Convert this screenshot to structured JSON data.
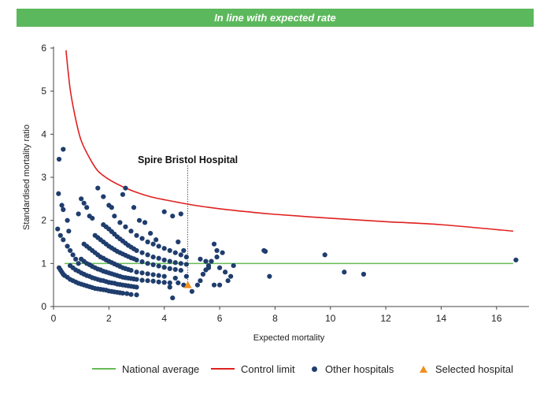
{
  "banner": {
    "text": "In line with expected rate",
    "color": "#5cb85c"
  },
  "colors": {
    "national_average": "#66bb55",
    "control_limit": "#e02020",
    "other_hospitals": "#1f3d6d",
    "selected_hospital": "#f0901e"
  },
  "chart_data": {
    "type": "scatter",
    "title": "In line with expected rate",
    "xlabel": "Expected mortality",
    "ylabel": "Standardised mortality ratio",
    "xlim": [
      0,
      17
    ],
    "ylim": [
      0,
      6
    ],
    "x_ticks": [
      0,
      2,
      4,
      6,
      8,
      10,
      12,
      14,
      16
    ],
    "y_ticks": [
      0,
      1,
      2,
      3,
      4,
      5,
      6
    ],
    "annotation": {
      "text": "Spire Bristol Hospital",
      "x": 4.85,
      "y": 0.5
    },
    "national_average": {
      "name": "National average",
      "y": 1.0,
      "x_range": [
        0.4,
        16.6
      ]
    },
    "control_limit": {
      "name": "Control limit",
      "x": [
        0.45,
        0.6,
        0.8,
        1.0,
        1.3,
        1.6,
        2.0,
        2.5,
        3.0,
        3.5,
        4.0,
        5.0,
        6.0,
        7.0,
        8.0,
        10.0,
        12.0,
        14.0,
        16.6
      ],
      "y": [
        5.95,
        5.05,
        4.35,
        3.85,
        3.45,
        3.15,
        2.95,
        2.78,
        2.65,
        2.55,
        2.48,
        2.36,
        2.27,
        2.2,
        2.14,
        2.05,
        1.97,
        1.9,
        1.75
      ]
    },
    "series": [
      {
        "name": "Other hospitals",
        "points": [
          [
            0.15,
            1.8
          ],
          [
            0.2,
            3.42
          ],
          [
            0.35,
            3.65
          ],
          [
            0.18,
            2.62
          ],
          [
            0.3,
            2.35
          ],
          [
            0.35,
            2.25
          ],
          [
            0.5,
            2.0
          ],
          [
            0.55,
            1.75
          ],
          [
            0.25,
            1.65
          ],
          [
            0.35,
            1.55
          ],
          [
            0.5,
            1.4
          ],
          [
            0.6,
            1.3
          ],
          [
            0.7,
            1.2
          ],
          [
            0.8,
            1.1
          ],
          [
            0.9,
            1.0
          ],
          [
            0.2,
            0.9
          ],
          [
            0.25,
            0.85
          ],
          [
            0.3,
            0.8
          ],
          [
            0.35,
            0.75
          ],
          [
            0.4,
            0.72
          ],
          [
            0.5,
            0.68
          ],
          [
            0.6,
            0.63
          ],
          [
            0.7,
            0.6
          ],
          [
            0.8,
            0.57
          ],
          [
            0.9,
            0.54
          ],
          [
            1.0,
            0.52
          ],
          [
            1.1,
            0.5
          ],
          [
            1.2,
            0.48
          ],
          [
            1.3,
            0.46
          ],
          [
            1.4,
            0.44
          ],
          [
            1.5,
            0.42
          ],
          [
            1.6,
            0.41
          ],
          [
            1.7,
            0.4
          ],
          [
            1.8,
            0.39
          ],
          [
            1.9,
            0.38
          ],
          [
            2.0,
            0.36
          ],
          [
            2.1,
            0.35
          ],
          [
            2.2,
            0.34
          ],
          [
            2.3,
            0.33
          ],
          [
            2.4,
            0.32
          ],
          [
            2.5,
            0.31
          ],
          [
            2.65,
            0.3
          ],
          [
            2.8,
            0.28
          ],
          [
            3.0,
            0.27
          ],
          [
            0.6,
            0.95
          ],
          [
            0.7,
            0.9
          ],
          [
            0.8,
            0.85
          ],
          [
            0.9,
            0.82
          ],
          [
            1.0,
            0.78
          ],
          [
            1.1,
            0.75
          ],
          [
            1.2,
            0.72
          ],
          [
            1.3,
            0.7
          ],
          [
            1.4,
            0.67
          ],
          [
            1.5,
            0.65
          ],
          [
            1.6,
            0.63
          ],
          [
            1.7,
            0.61
          ],
          [
            1.8,
            0.6
          ],
          [
            1.9,
            0.58
          ],
          [
            2.0,
            0.56
          ],
          [
            2.1,
            0.55
          ],
          [
            2.2,
            0.54
          ],
          [
            2.3,
            0.52
          ],
          [
            2.4,
            0.51
          ],
          [
            2.5,
            0.5
          ],
          [
            2.6,
            0.49
          ],
          [
            2.7,
            0.48
          ],
          [
            2.8,
            0.47
          ],
          [
            2.9,
            0.46
          ],
          [
            3.0,
            0.45
          ],
          [
            1.0,
            1.1
          ],
          [
            1.1,
            1.05
          ],
          [
            1.2,
            1.0
          ],
          [
            1.3,
            0.97
          ],
          [
            1.4,
            0.93
          ],
          [
            1.5,
            0.9
          ],
          [
            1.6,
            0.87
          ],
          [
            1.7,
            0.85
          ],
          [
            1.8,
            0.82
          ],
          [
            1.9,
            0.8
          ],
          [
            2.0,
            0.78
          ],
          [
            2.1,
            0.76
          ],
          [
            2.2,
            0.74
          ],
          [
            2.3,
            0.72
          ],
          [
            2.4,
            0.7
          ],
          [
            2.5,
            0.68
          ],
          [
            2.6,
            0.67
          ],
          [
            2.7,
            0.66
          ],
          [
            2.8,
            0.65
          ],
          [
            2.9,
            0.64
          ],
          [
            3.0,
            0.63
          ],
          [
            3.2,
            0.61
          ],
          [
            3.4,
            0.6
          ],
          [
            3.6,
            0.59
          ],
          [
            3.8,
            0.57
          ],
          [
            4.0,
            0.56
          ],
          [
            4.2,
            0.55
          ],
          [
            1.1,
            1.45
          ],
          [
            1.2,
            1.4
          ],
          [
            1.3,
            1.35
          ],
          [
            1.4,
            1.3
          ],
          [
            1.5,
            1.25
          ],
          [
            1.6,
            1.2
          ],
          [
            1.7,
            1.15
          ],
          [
            1.8,
            1.12
          ],
          [
            1.9,
            1.08
          ],
          [
            2.0,
            1.05
          ],
          [
            2.1,
            1.02
          ],
          [
            2.2,
            0.99
          ],
          [
            2.3,
            0.96
          ],
          [
            2.4,
            0.93
          ],
          [
            2.5,
            0.9
          ],
          [
            2.6,
            0.88
          ],
          [
            2.7,
            0.86
          ],
          [
            2.8,
            0.84
          ],
          [
            3.0,
            0.8
          ],
          [
            3.2,
            0.78
          ],
          [
            3.4,
            0.76
          ],
          [
            3.6,
            0.74
          ],
          [
            3.8,
            0.72
          ],
          [
            4.0,
            0.7
          ],
          [
            4.4,
            0.66
          ],
          [
            1.5,
            1.65
          ],
          [
            1.6,
            1.6
          ],
          [
            1.7,
            1.55
          ],
          [
            1.8,
            1.5
          ],
          [
            1.9,
            1.45
          ],
          [
            2.0,
            1.4
          ],
          [
            2.1,
            1.36
          ],
          [
            2.2,
            1.32
          ],
          [
            2.3,
            1.28
          ],
          [
            2.4,
            1.25
          ],
          [
            2.5,
            1.22
          ],
          [
            2.6,
            1.19
          ],
          [
            2.7,
            1.16
          ],
          [
            2.8,
            1.13
          ],
          [
            2.9,
            1.11
          ],
          [
            3.0,
            1.08
          ],
          [
            3.2,
            1.04
          ],
          [
            3.4,
            1.0
          ],
          [
            3.6,
            0.97
          ],
          [
            3.8,
            0.94
          ],
          [
            4.0,
            0.91
          ],
          [
            4.2,
            0.88
          ],
          [
            4.4,
            0.86
          ],
          [
            4.6,
            0.84
          ],
          [
            1.8,
            1.9
          ],
          [
            1.9,
            1.85
          ],
          [
            2.0,
            1.8
          ],
          [
            2.1,
            1.74
          ],
          [
            2.2,
            1.68
          ],
          [
            2.3,
            1.62
          ],
          [
            2.4,
            1.57
          ],
          [
            2.5,
            1.52
          ],
          [
            2.6,
            1.47
          ],
          [
            2.7,
            1.42
          ],
          [
            2.8,
            1.38
          ],
          [
            2.9,
            1.34
          ],
          [
            3.0,
            1.3
          ],
          [
            3.2,
            1.25
          ],
          [
            3.4,
            1.2
          ],
          [
            3.6,
            1.15
          ],
          [
            3.8,
            1.12
          ],
          [
            4.0,
            1.08
          ],
          [
            4.2,
            1.05
          ],
          [
            4.4,
            1.02
          ],
          [
            4.6,
            1.0
          ],
          [
            4.8,
            0.98
          ],
          [
            2.2,
            2.1
          ],
          [
            2.4,
            1.95
          ],
          [
            2.6,
            1.85
          ],
          [
            2.8,
            1.75
          ],
          [
            3.0,
            1.65
          ],
          [
            3.2,
            1.58
          ],
          [
            3.4,
            1.5
          ],
          [
            3.6,
            1.45
          ],
          [
            3.8,
            1.4
          ],
          [
            4.0,
            1.35
          ],
          [
            4.2,
            1.3
          ],
          [
            4.4,
            1.25
          ],
          [
            4.6,
            1.2
          ],
          [
            4.8,
            1.15
          ],
          [
            1.0,
            2.5
          ],
          [
            1.1,
            2.4
          ],
          [
            1.2,
            2.3
          ],
          [
            0.9,
            2.15
          ],
          [
            1.3,
            2.1
          ],
          [
            1.4,
            2.05
          ],
          [
            1.6,
            2.75
          ],
          [
            1.8,
            2.55
          ],
          [
            2.0,
            2.35
          ],
          [
            2.1,
            2.3
          ],
          [
            2.5,
            2.6
          ],
          [
            2.6,
            2.75
          ],
          [
            2.9,
            2.3
          ],
          [
            3.1,
            2.0
          ],
          [
            3.3,
            1.95
          ],
          [
            3.5,
            1.7
          ],
          [
            3.7,
            1.55
          ],
          [
            4.0,
            2.2
          ],
          [
            4.3,
            2.1
          ],
          [
            4.6,
            2.15
          ],
          [
            4.5,
            1.5
          ],
          [
            4.7,
            1.3
          ],
          [
            4.2,
            0.45
          ],
          [
            4.3,
            0.2
          ],
          [
            4.5,
            0.55
          ],
          [
            4.7,
            0.5
          ],
          [
            4.8,
            0.7
          ],
          [
            5.0,
            0.35
          ],
          [
            5.2,
            0.5
          ],
          [
            5.3,
            0.6
          ],
          [
            5.4,
            0.75
          ],
          [
            5.5,
            0.85
          ],
          [
            5.6,
            0.95
          ],
          [
            5.7,
            1.05
          ],
          [
            5.8,
            0.5
          ],
          [
            5.9,
            1.15
          ],
          [
            6.0,
            0.5
          ],
          [
            5.3,
            1.1
          ],
          [
            5.5,
            1.05
          ],
          [
            5.6,
            0.9
          ],
          [
            5.8,
            1.45
          ],
          [
            5.9,
            1.3
          ],
          [
            6.1,
            1.25
          ],
          [
            6.2,
            0.8
          ],
          [
            6.3,
            0.6
          ],
          [
            6.4,
            0.7
          ],
          [
            6.5,
            0.95
          ],
          [
            6.0,
            0.9
          ],
          [
            7.6,
            1.3
          ],
          [
            7.65,
            1.28
          ],
          [
            7.8,
            0.7
          ],
          [
            9.8,
            1.2
          ],
          [
            10.5,
            0.8
          ],
          [
            11.2,
            0.75
          ],
          [
            16.7,
            1.08
          ]
        ]
      },
      {
        "name": "Selected hospital",
        "points": [
          [
            4.85,
            0.5
          ]
        ]
      }
    ]
  }
}
